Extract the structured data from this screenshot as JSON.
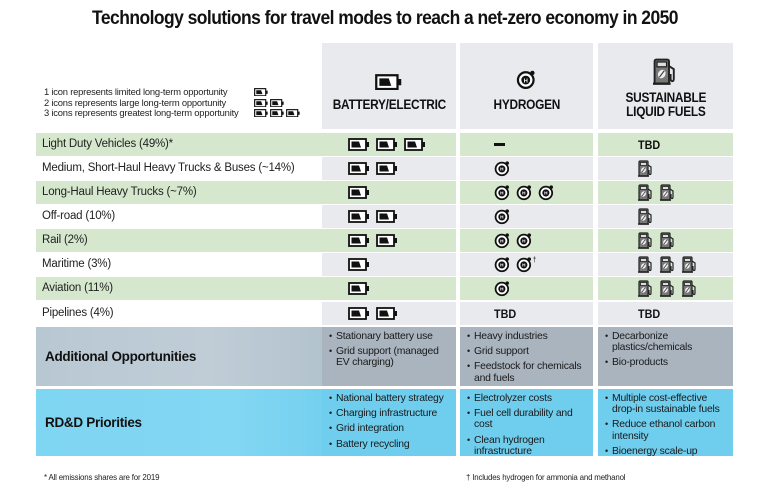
{
  "title": "Technology solutions for travel modes to reach a net-zero economy in 2050",
  "legend": [
    {
      "text": "1 icon represents limited long-term opportunity",
      "count": 1
    },
    {
      "text": "2 icons represents large long-term opportunity",
      "count": 2
    },
    {
      "text": "3 icons represents greatest long-term opportunity",
      "count": 3
    }
  ],
  "legend_icon": "battery-icon",
  "columns": [
    {
      "label": "BATTERY/ELECTRIC",
      "icon": "battery-icon"
    },
    {
      "label": "HYDROGEN",
      "icon": "hydrogen-icon"
    },
    {
      "label_line1": "SUSTAINABLE",
      "label_line2": "LIQUID FUELS",
      "icon": "fuel-pump-icon"
    }
  ],
  "rows": [
    {
      "mode": "Light Duty Vehicles (49%)*",
      "battery": 3,
      "hydrogen": "—",
      "slf": "TBD"
    },
    {
      "mode": "Medium, Short-Haul Heavy Trucks & Buses (~14%)",
      "battery": 2,
      "hydrogen": 1,
      "slf": 1
    },
    {
      "mode": "Long-Haul Heavy Trucks (~7%)",
      "battery": 1,
      "hydrogen": 3,
      "slf": 2
    },
    {
      "mode": "Off-road (10%)",
      "battery": 2,
      "hydrogen": 1,
      "slf": 1
    },
    {
      "mode": "Rail (2%)",
      "battery": 2,
      "hydrogen": 2,
      "slf": 2
    },
    {
      "mode": "Maritime (3%)",
      "battery": 1,
      "hydrogen": 2,
      "hydrogen_note": "†",
      "slf": 3
    },
    {
      "mode": "Aviation (11%)",
      "battery": 1,
      "hydrogen": 1,
      "slf": 3
    },
    {
      "mode": "Pipelines (4%)",
      "battery": 2,
      "hydrogen": "TBD",
      "slf": "TBD"
    }
  ],
  "additional_opportunities": {
    "label": "Additional Opportunities",
    "battery": [
      "Stationary battery use",
      "Grid support (managed EV charging)"
    ],
    "hydrogen": [
      "Heavy industries",
      "Grid support",
      "Feedstock for chemicals and fuels"
    ],
    "slf": [
      "Decarbonize plastics/chemicals",
      "Bio-products"
    ]
  },
  "rdd_priorities": {
    "label": "RD&D Priorities",
    "battery": [
      "National battery strategy",
      "Charging infrastructure",
      "Grid integration",
      "Battery recycling"
    ],
    "hydrogen": [
      "Electrolyzer costs",
      "Fuel cell durability and cost",
      "Clean hydrogen infrastructure"
    ],
    "slf": [
      "Multiple cost-effective drop-in sustainable fuels",
      "Reduce ethanol carbon intensity",
      "Bioenergy scale-up"
    ]
  },
  "footnotes": {
    "left": "* All emissions shares are for 2019",
    "right": "† Includes hydrogen for ammonia and methanol"
  },
  "colors": {
    "row_green": "#d5e8ce",
    "cell_gray": "#e8eaed",
    "additional_label": "#bccad4",
    "additional_cell": "#a9b4bf",
    "rdd_label": "#80d6f2",
    "rdd_cell": "#6fcdee"
  }
}
